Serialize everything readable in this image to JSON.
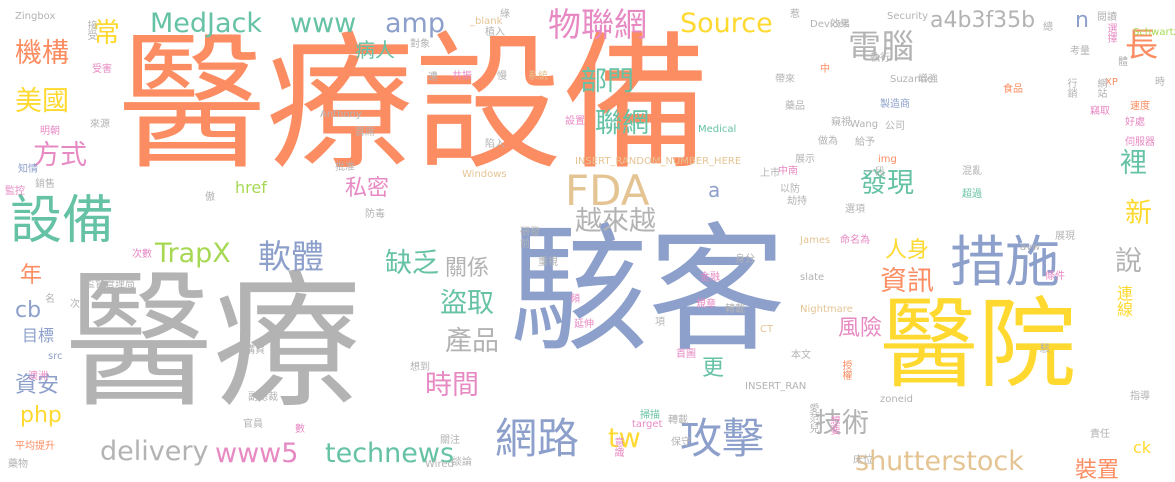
{
  "palette": {
    "orange": "#fc8d62",
    "blue": "#8da0cb",
    "yellow": "#ffd92f",
    "gray": "#b3b3b3",
    "green": "#a6d854",
    "pink": "#e78ac3",
    "teal": "#66c2a5",
    "tan": "#e5c494"
  },
  "words": [
    {
      "id": "w01",
      "text": "醫療設備",
      "color": "#fc8d62"
    },
    {
      "id": "w02",
      "text": "醫療",
      "color": "#b3b3b3"
    },
    {
      "id": "w03",
      "text": "駭客",
      "color": "#8da0cb"
    },
    {
      "id": "w04",
      "text": "醫院",
      "color": "#ffd92f"
    },
    {
      "id": "w05",
      "text": "措施",
      "color": "#8da0cb"
    },
    {
      "id": "w06",
      "text": "設備",
      "color": "#66c2a5"
    },
    {
      "id": "w07",
      "text": "FDA",
      "color": "#e5c494"
    },
    {
      "id": "w08",
      "text": "攻擊",
      "color": "#8da0cb"
    },
    {
      "id": "w09",
      "text": "網路",
      "color": "#8da0cb"
    },
    {
      "id": "w10",
      "text": "物聯網",
      "color": "#e78ac3"
    },
    {
      "id": "w11",
      "text": "MedJack",
      "color": "#66c2a5"
    },
    {
      "id": "w12",
      "text": "www",
      "color": "#66c2a5"
    },
    {
      "id": "w13",
      "text": "amp",
      "color": "#8da0cb"
    },
    {
      "id": "w14",
      "text": "Source",
      "color": "#ffd92f"
    },
    {
      "id": "w15",
      "text": "a4b3f35b",
      "color": "#b3b3b3"
    },
    {
      "id": "w16",
      "text": "n",
      "color": "#8da0cb"
    },
    {
      "id": "w17",
      "text": "電腦",
      "color": "#b3b3b3"
    },
    {
      "id": "w18",
      "text": "長",
      "color": "#fc8d62"
    },
    {
      "id": "w19",
      "text": "部門",
      "color": "#66c2a5"
    },
    {
      "id": "w20",
      "text": "聯網",
      "color": "#66c2a5"
    },
    {
      "id": "w21",
      "text": "機構",
      "color": "#fc8d62"
    },
    {
      "id": "w22",
      "text": "常",
      "color": "#ffd92f"
    },
    {
      "id": "w23",
      "text": "美國",
      "color": "#ffd92f"
    },
    {
      "id": "w24",
      "text": "方式",
      "color": "#e78ac3"
    },
    {
      "id": "w25",
      "text": "病人",
      "color": "#66c2a5"
    },
    {
      "id": "w26",
      "text": "私密",
      "color": "#e78ac3"
    },
    {
      "id": "w27",
      "text": "發現",
      "color": "#66c2a5"
    },
    {
      "id": "w28",
      "text": "裡",
      "color": "#66c2a5"
    },
    {
      "id": "w29",
      "text": "新",
      "color": "#ffd92f"
    },
    {
      "id": "w30",
      "text": "越來越",
      "color": "#b3b3b3"
    },
    {
      "id": "w31",
      "text": "href",
      "color": "#a6d854"
    },
    {
      "id": "w32",
      "text": "a",
      "color": "#8da0cb"
    },
    {
      "id": "w33",
      "text": "TrapX",
      "color": "#a6d854"
    },
    {
      "id": "w34",
      "text": "軟體",
      "color": "#8da0cb"
    },
    {
      "id": "w35",
      "text": "缺乏",
      "color": "#66c2a5"
    },
    {
      "id": "w36",
      "text": "關係",
      "color": "#b3b3b3"
    },
    {
      "id": "w37",
      "text": "人身",
      "color": "#ffd92f"
    },
    {
      "id": "w38",
      "text": "資訊",
      "color": "#fc8d62"
    },
    {
      "id": "w39",
      "text": "說",
      "color": "#b3b3b3"
    },
    {
      "id": "w40",
      "text": "年",
      "color": "#fc8d62"
    },
    {
      "id": "w41",
      "text": "cb",
      "color": "#8da0cb"
    },
    {
      "id": "w42",
      "text": "目標",
      "color": "#8da0cb"
    },
    {
      "id": "w43",
      "text": "盜取",
      "color": "#66c2a5"
    },
    {
      "id": "w44",
      "text": "產品",
      "color": "#b3b3b3"
    },
    {
      "id": "w45",
      "text": "時間",
      "color": "#e78ac3"
    },
    {
      "id": "w46",
      "text": "風險",
      "color": "#e78ac3"
    },
    {
      "id": "w47",
      "text": "更",
      "color": "#66c2a5"
    },
    {
      "id": "w48",
      "text": "資安",
      "color": "#8da0cb"
    },
    {
      "id": "w49",
      "text": "php",
      "color": "#ffd92f"
    },
    {
      "id": "w50",
      "text": "delivery",
      "color": "#b3b3b3"
    },
    {
      "id": "w51",
      "text": "www5",
      "color": "#e78ac3"
    },
    {
      "id": "w52",
      "text": "technews",
      "color": "#66c2a5"
    },
    {
      "id": "w53",
      "text": "tw",
      "color": "#ffd92f"
    },
    {
      "id": "w54",
      "text": "技術",
      "color": "#b3b3b3"
    },
    {
      "id": "w55",
      "text": "shutterstock",
      "color": "#e5c494"
    },
    {
      "id": "w56",
      "text": "裝置",
      "color": "#fc8d62"
    },
    {
      "id": "w57",
      "text": "連線",
      "color": "#ffd92f"
    },
    {
      "id": "w58",
      "text": "ck",
      "color": "#ffd92f"
    },
    {
      "id": "w59",
      "text": "Zingbox",
      "color": "#b3b3b3"
    },
    {
      "id": "w60",
      "text": "Security",
      "color": "#b3b3b3"
    },
    {
      "id": "w61",
      "text": "Schwartz",
      "color": "#a6d854"
    },
    {
      "id": "w62",
      "text": "Suzanne",
      "color": "#b3b3b3"
    },
    {
      "id": "w63",
      "text": "Anthony",
      "color": "#b3b3b3"
    },
    {
      "id": "w64",
      "text": "Medical",
      "color": "#66c2a5"
    },
    {
      "id": "w65",
      "text": "Wang",
      "color": "#b3b3b3"
    },
    {
      "id": "w66",
      "text": "INSERT_RANDOM_NUMBER_HERE",
      "color": "#e5c494"
    },
    {
      "id": "w67",
      "text": "Windows",
      "color": "#e5c494"
    },
    {
      "id": "w68",
      "text": "Devices",
      "color": "#b3b3b3"
    },
    {
      "id": "w69",
      "text": "James",
      "color": "#e5c494"
    },
    {
      "id": "w70",
      "text": "slate",
      "color": "#b3b3b3"
    },
    {
      "id": "w71",
      "text": "Nightmare",
      "color": "#e5c494"
    },
    {
      "id": "w72",
      "text": "zoneid",
      "color": "#b3b3b3"
    },
    {
      "id": "w73",
      "text": "INSERT_RAN",
      "color": "#b3b3b3"
    },
    {
      "id": "w74",
      "text": "Wired",
      "color": "#b3b3b3"
    },
    {
      "id": "w75",
      "text": "target",
      "color": "#e78ac3"
    },
    {
      "id": "w76",
      "text": "avw",
      "color": "#b3b3b3"
    },
    {
      "id": "w77",
      "text": "XP",
      "color": "#fc8d62"
    },
    {
      "id": "w78",
      "text": "img",
      "color": "#fc8d62"
    },
    {
      "id": "w79",
      "text": "CT",
      "color": "#e5c494"
    },
    {
      "id": "w80",
      "text": "src",
      "color": "#8da0cb"
    },
    {
      "id": "w81",
      "text": "_blank",
      "color": "#e5c494"
    },
    {
      "id": "w82",
      "text": "製造商",
      "color": "#8da0cb"
    },
    {
      "id": "w83",
      "text": "食品",
      "color": "#fc8d62"
    },
    {
      "id": "w84",
      "text": "藥品",
      "color": "#b3b3b3"
    },
    {
      "id": "w85",
      "text": "增強",
      "color": "#b3b3b3"
    },
    {
      "id": "w86",
      "text": "網站",
      "color": "#b3b3b3"
    },
    {
      "id": "w87",
      "text": "行銷",
      "color": "#b3b3b3"
    },
    {
      "id": "w88",
      "text": "速度",
      "color": "#fc8d62"
    },
    {
      "id": "w89",
      "text": "好處",
      "color": "#e78ac3"
    },
    {
      "id": "w90",
      "text": "伺服器",
      "color": "#e78ac3"
    },
    {
      "id": "w91",
      "text": "混亂",
      "color": "#b3b3b3"
    },
    {
      "id": "w92",
      "text": "超過",
      "color": "#66c2a5"
    },
    {
      "id": "w93",
      "text": "展現",
      "color": "#b3b3b3"
    },
    {
      "id": "w94",
      "text": "條件",
      "color": "#e78ac3"
    },
    {
      "id": "w95",
      "text": "命名為",
      "color": "#e78ac3"
    },
    {
      "id": "w96",
      "text": "監督管理局",
      "color": "#b3b3b3"
    },
    {
      "id": "w97",
      "text": "次數",
      "color": "#e78ac3"
    },
    {
      "id": "w98",
      "text": "研發",
      "color": "#b3b3b3"
    },
    {
      "id": "w99",
      "text": "重視",
      "color": "#b3b3b3"
    },
    {
      "id": "w100",
      "text": "金融",
      "color": "#e78ac3"
    },
    {
      "id": "w101",
      "text": "身分",
      "color": "#b3b3b3"
    },
    {
      "id": "w102",
      "text": "規章",
      "color": "#e78ac3"
    },
    {
      "id": "w103",
      "text": "轉載",
      "color": "#b3b3b3"
    },
    {
      "id": "w104",
      "text": "延伸",
      "color": "#e78ac3"
    },
    {
      "id": "w105",
      "text": "首圖",
      "color": "#e78ac3"
    },
    {
      "id": "w106",
      "text": "本文",
      "color": "#b3b3b3"
    },
    {
      "id": "w107",
      "text": "授權",
      "color": "#fc8d62"
    },
    {
      "id": "w108",
      "text": "愛范兒",
      "color": "#b3b3b3"
    },
    {
      "id": "w109",
      "text": "想要",
      "color": "#e78ac3"
    },
    {
      "id": "w110",
      "text": "責任",
      "color": "#b3b3b3"
    },
    {
      "id": "w111",
      "text": "指導",
      "color": "#b3b3b3"
    },
    {
      "id": "w112",
      "text": "床位",
      "color": "#b3b3b3"
    },
    {
      "id": "w113",
      "text": "保守",
      "color": "#b3b3b3"
    },
    {
      "id": "w114",
      "text": "意識",
      "color": "#e78ac3"
    },
    {
      "id": "w115",
      "text": "轉載",
      "color": "#b3b3b3"
    },
    {
      "id": "w116",
      "text": "掃描",
      "color": "#66c2a5"
    },
    {
      "id": "w117",
      "text": "關注",
      "color": "#b3b3b3"
    },
    {
      "id": "w118",
      "text": "談論",
      "color": "#b3b3b3"
    },
    {
      "id": "w119",
      "text": "官員",
      "color": "#b3b3b3"
    },
    {
      "id": "w120",
      "text": "藥物",
      "color": "#b3b3b3"
    },
    {
      "id": "w121",
      "text": "平均提升",
      "color": "#fc8d62"
    },
    {
      "id": "w122",
      "text": "副總裁",
      "color": "#b3b3b3"
    },
    {
      "id": "w123",
      "text": "想到",
      "color": "#b3b3b3"
    },
    {
      "id": "w124",
      "text": "購買",
      "color": "#b3b3b3"
    },
    {
      "id": "w125",
      "text": "澳洲",
      "color": "#e78ac3"
    },
    {
      "id": "w126",
      "text": "防毒",
      "color": "#b3b3b3"
    },
    {
      "id": "w127",
      "text": "批准",
      "color": "#b3b3b3"
    },
    {
      "id": "w128",
      "text": "首席",
      "color": "#b3b3b3"
    },
    {
      "id": "w129",
      "text": "陷入",
      "color": "#b3b3b3"
    },
    {
      "id": "w130",
      "text": "設置",
      "color": "#e78ac3"
    },
    {
      "id": "w131",
      "text": "系統",
      "color": "#e5c494"
    },
    {
      "id": "w132",
      "text": "共振",
      "color": "#e78ac3"
    },
    {
      "id": "w133",
      "text": "慢",
      "color": "#b3b3b3"
    },
    {
      "id": "w134",
      "text": "植入",
      "color": "#b3b3b3"
    },
    {
      "id": "w135",
      "text": "對象",
      "color": "#b3b3b3"
    },
    {
      "id": "w136",
      "text": "執行",
      "color": "#b3b3b3"
    },
    {
      "id": "w137",
      "text": "效果",
      "color": "#b3b3b3"
    },
    {
      "id": "w138",
      "text": "帶來",
      "color": "#b3b3b3"
    },
    {
      "id": "w139",
      "text": "考量",
      "color": "#b3b3b3"
    },
    {
      "id": "w140",
      "text": "閱讀",
      "color": "#b3b3b3"
    },
    {
      "id": "w141",
      "text": "選擇",
      "color": "#e78ac3"
    },
    {
      "id": "w142",
      "text": "公司",
      "color": "#b3b3b3"
    },
    {
      "id": "w143",
      "text": "做為",
      "color": "#b3b3b3"
    },
    {
      "id": "w144",
      "text": "竊取",
      "color": "#e78ac3"
    },
    {
      "id": "w145",
      "text": "來源",
      "color": "#b3b3b3"
    },
    {
      "id": "w146",
      "text": "明朝",
      "color": "#e78ac3"
    },
    {
      "id": "w147",
      "text": "知情",
      "color": "#8da0cb"
    },
    {
      "id": "w148",
      "text": "銷售",
      "color": "#b3b3b3"
    },
    {
      "id": "w149",
      "text": "監控",
      "color": "#e78ac3"
    },
    {
      "id": "w150",
      "text": "受害",
      "color": "#e78ac3"
    },
    {
      "id": "w151",
      "text": "接受",
      "color": "#b3b3b3"
    },
    {
      "id": "w152",
      "text": "給予",
      "color": "#b3b3b3"
    },
    {
      "id": "w153",
      "text": "一段",
      "color": "#b3b3b3"
    },
    {
      "id": "w154",
      "text": "上市",
      "color": "#b3b3b3"
    },
    {
      "id": "w155",
      "text": "以防",
      "color": "#b3b3b3"
    },
    {
      "id": "w156",
      "text": "劫持",
      "color": "#b3b3b3"
    },
    {
      "id": "w157",
      "text": "展示",
      "color": "#b3b3b3"
    },
    {
      "id": "w158",
      "text": "中南",
      "color": "#e78ac3"
    },
    {
      "id": "w159",
      "text": "選項",
      "color": "#b3b3b3"
    },
    {
      "id": "w160",
      "text": "窺視",
      "color": "#b3b3b3"
    },
    {
      "id": "w161",
      "text": "中",
      "color": "#fc8d62"
    },
    {
      "id": "w162",
      "text": "遭",
      "color": "#b3b3b3"
    },
    {
      "id": "w163",
      "text": "頻",
      "color": "#e78ac3"
    },
    {
      "id": "w164",
      "text": "項",
      "color": "#b3b3b3"
    },
    {
      "id": "w165",
      "text": "總",
      "color": "#b3b3b3"
    },
    {
      "id": "w166",
      "text": "名",
      "color": "#b3b3b3"
    },
    {
      "id": "w167",
      "text": "前",
      "color": "#b3b3b3"
    },
    {
      "id": "w168",
      "text": "次",
      "color": "#b3b3b3"
    },
    {
      "id": "w169",
      "text": "數",
      "color": "#e78ac3"
    },
    {
      "id": "w170",
      "text": "駭",
      "color": "#b3b3b3"
    },
    {
      "id": "w171",
      "text": "時",
      "color": "#b3b3b3"
    },
    {
      "id": "w172",
      "text": "傲",
      "color": "#b3b3b3"
    },
    {
      "id": "w173",
      "text": "體",
      "color": "#b3b3b3"
    },
    {
      "id": "w174",
      "text": "綠",
      "color": "#b3b3b3"
    },
    {
      "id": "w175",
      "text": "惹",
      "color": "#b3b3b3"
    }
  ]
}
